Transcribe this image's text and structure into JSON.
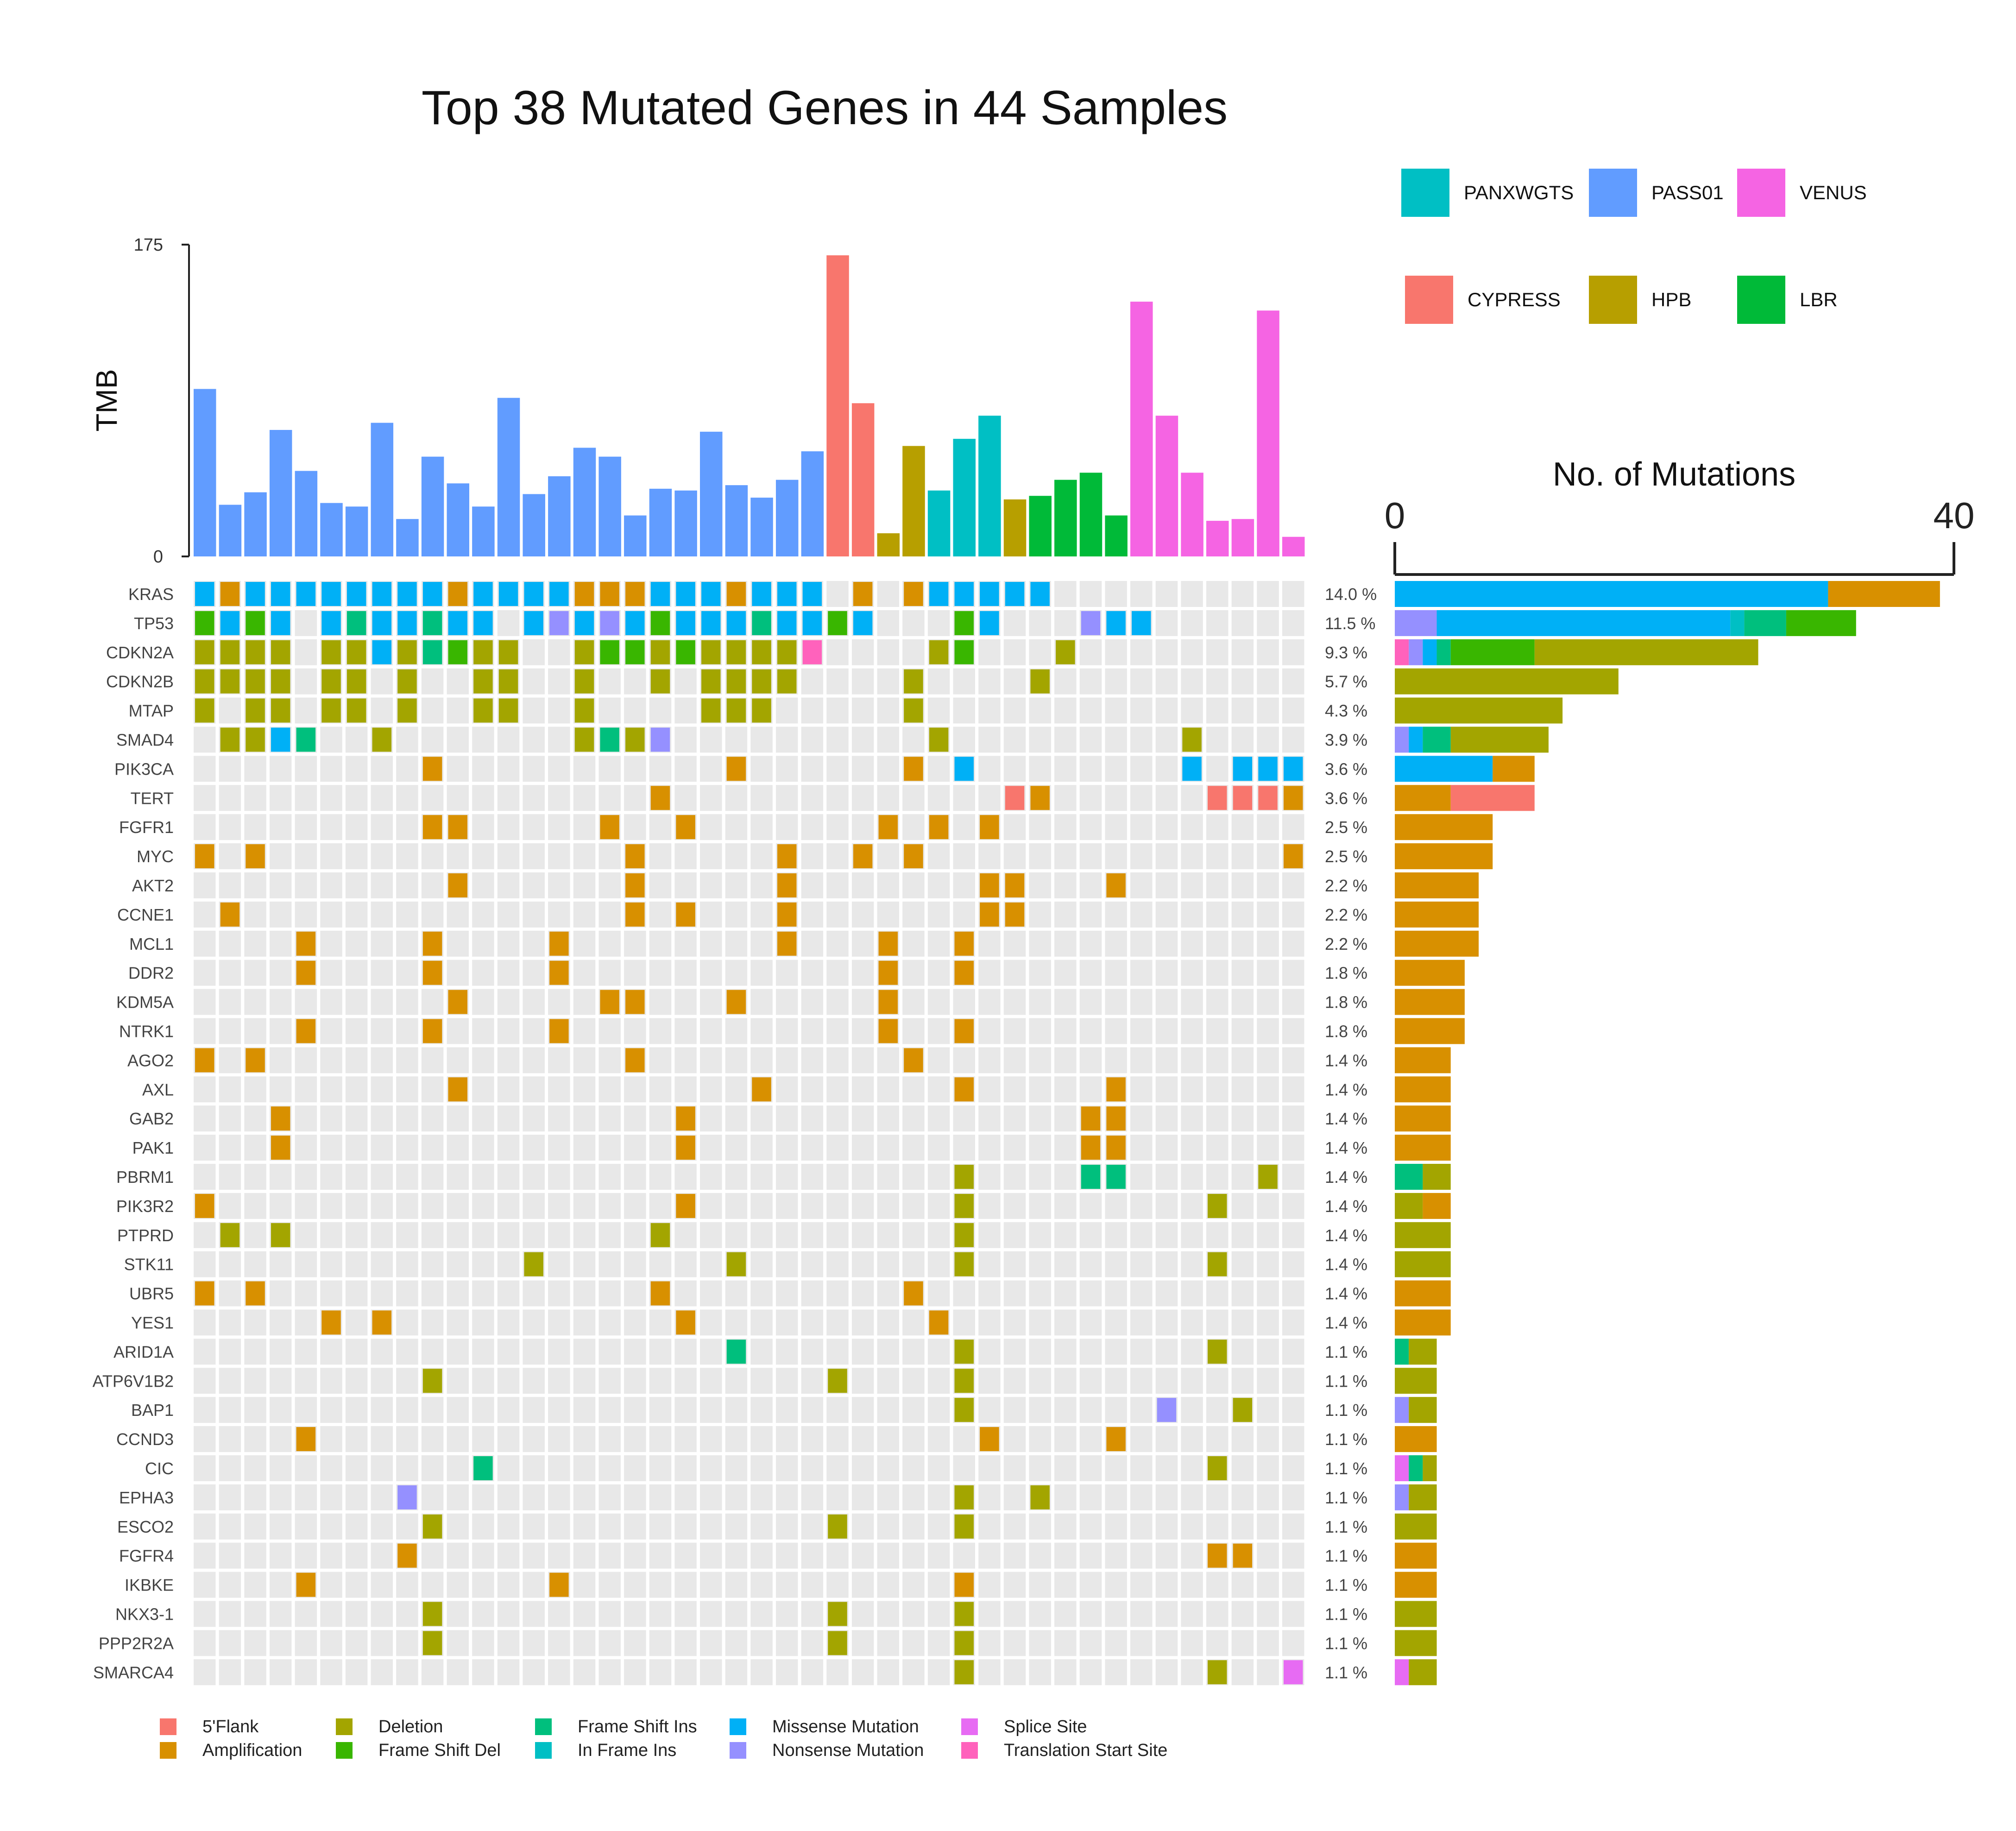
{
  "chart_data": {
    "type": "heatmap",
    "title": "Top 38 Mutated Genes in 44 Samples",
    "tmb": {
      "ylabel": "TMB",
      "ylim": [
        0,
        175
      ],
      "tick_labels": [
        "0",
        "175"
      ],
      "values": [
        94,
        29,
        36,
        71,
        48,
        30,
        28,
        75,
        21,
        56,
        41,
        28,
        89,
        35,
        45,
        61,
        56,
        23,
        38,
        37,
        70,
        40,
        33,
        43,
        59,
        169,
        86,
        13,
        62,
        37,
        66,
        79,
        32,
        34,
        43,
        47,
        23,
        143,
        79,
        47,
        20,
        21,
        138,
        11
      ],
      "cohort": [
        "PASS01",
        "PASS01",
        "PASS01",
        "PASS01",
        "PASS01",
        "PASS01",
        "PASS01",
        "PASS01",
        "PASS01",
        "PASS01",
        "PASS01",
        "PASS01",
        "PASS01",
        "PASS01",
        "PASS01",
        "PASS01",
        "PASS01",
        "PASS01",
        "PASS01",
        "PASS01",
        "PASS01",
        "PASS01",
        "PASS01",
        "PASS01",
        "PASS01",
        "CYPRESS",
        "CYPRESS",
        "HPB",
        "HPB",
        "PANXWGTS",
        "PANXWGTS",
        "PANXWGTS",
        "HPB",
        "LBR",
        "LBR",
        "LBR",
        "LBR",
        "VENUS",
        "VENUS",
        "VENUS",
        "VENUS",
        "VENUS",
        "VENUS",
        "VENUS"
      ]
    },
    "cohorts": [
      {
        "name": "PANXWGTS",
        "color": "#00BFC4"
      },
      {
        "name": "PASS01",
        "color": "#619CFF"
      },
      {
        "name": "VENUS",
        "color": "#F564E3"
      },
      {
        "name": "CYPRESS",
        "color": "#F8766D"
      },
      {
        "name": "HPB",
        "color": "#B79F00"
      },
      {
        "name": "LBR",
        "color": "#00BA38"
      }
    ],
    "mutation_types": [
      {
        "code": "F",
        "name": "5'Flank",
        "color": "#F8766D"
      },
      {
        "code": "A",
        "name": "Amplification",
        "color": "#D89000"
      },
      {
        "code": "D",
        "name": "Deletion",
        "color": "#A3A500"
      },
      {
        "code": "L",
        "name": "Frame Shift Del",
        "color": "#39B600"
      },
      {
        "code": "I",
        "name": "Frame Shift Ins",
        "color": "#00BF7D"
      },
      {
        "code": "N",
        "name": "In Frame Ins",
        "color": "#00BFC4"
      },
      {
        "code": "M",
        "name": "Missense Mutation",
        "color": "#00B0F6"
      },
      {
        "code": "X",
        "name": "Nonsense Mutation",
        "color": "#9590FF"
      },
      {
        "code": "S",
        "name": "Splice Site",
        "color": "#E76BF3"
      },
      {
        "code": "T",
        "name": "Translation Start Site",
        "color": "#FF62BC"
      }
    ],
    "genes": [
      {
        "gene": "KRAS",
        "pct": "14.0 %",
        "row": "MAMMMMMMMMAMMMMAAAMMMAMMM-A-AMMMMM----------",
        "bar": [
          [
            "M",
            31
          ],
          [
            "A",
            8
          ]
        ]
      },
      {
        "gene": "TP53",
        "pct": "11.5 %",
        "row": "LMLM-MIMMIMM-MXMXMLMMMIMMLM---LM---XMM-------",
        "bar": [
          [
            "X",
            3
          ],
          [
            "M",
            21
          ],
          [
            "N",
            1
          ],
          [
            "I",
            3
          ],
          [
            "L",
            5
          ]
        ]
      },
      {
        "gene": "CDKN2A",
        "pct": "9.3 %",
        "row": "DDDD-DDMDILDD--DLLDLDDDDT----DL---D---------",
        "bar": [
          [
            "T",
            1
          ],
          [
            "X",
            1
          ],
          [
            "M",
            1
          ],
          [
            "I",
            1
          ],
          [
            "L",
            6
          ],
          [
            "D",
            16
          ]
        ]
      },
      {
        "gene": "CDKN2B",
        "pct": "5.7 %",
        "row": "DDDD-DD-D--DD--D--D-DDDD----D----D---------",
        "bar": [
          [
            "D",
            16
          ]
        ]
      },
      {
        "gene": "MTAP",
        "pct": "4.3 %",
        "row": "D-DD-DD-D--DD--D----DDD-----D--------------",
        "bar": [
          [
            "D",
            12
          ]
        ]
      },
      {
        "gene": "SMAD4",
        "pct": "3.9 %",
        "row": "-DDMI--D-------DIDX----------D---------D----",
        "bar": [
          [
            "X",
            1
          ],
          [
            "M",
            1
          ],
          [
            "I",
            2
          ],
          [
            "D",
            7
          ]
        ]
      },
      {
        "gene": "PIK3CA",
        "pct": "3.6 %",
        "row": "---------A-----------A------A-M--------M-MMMM",
        "bar": [
          [
            "M",
            7
          ],
          [
            "A",
            3
          ]
        ]
      },
      {
        "gene": "TERT",
        "pct": "3.6 %",
        "row": "------------------A-------------FA------FFFAA",
        "bar": [
          [
            "A",
            4
          ],
          [
            "F",
            6
          ]
        ]
      },
      {
        "gene": "FGFR1",
        "pct": "2.5 %",
        "row": "---------AA-----A--A-------A-A-A-------------",
        "bar": [
          [
            "A",
            7
          ]
        ]
      },
      {
        "gene": "MYC",
        "pct": "2.5 %",
        "row": "A-A--------------A-----A--A-A--------------A-",
        "bar": [
          [
            "A",
            7
          ]
        ]
      },
      {
        "gene": "AKT2",
        "pct": "2.2 %",
        "row": "----------A------A-----A-------AA---A--------",
        "bar": [
          [
            "A",
            6
          ]
        ]
      },
      {
        "gene": "CCNE1",
        "pct": "2.2 %",
        "row": "-A---------------A-A---A-------AA-----------",
        "bar": [
          [
            "A",
            6
          ]
        ]
      },
      {
        "gene": "MCL1",
        "pct": "2.2 %",
        "row": "----A----A----A--------A---A--A-------------",
        "bar": [
          [
            "A",
            6
          ]
        ]
      },
      {
        "gene": "DDR2",
        "pct": "1.8 %",
        "row": "----A----A----A------------A--A-------------",
        "bar": [
          [
            "A",
            5
          ]
        ]
      },
      {
        "gene": "KDM5A",
        "pct": "1.8 %",
        "row": "----------A-----AA---A-----A----------------",
        "bar": [
          [
            "A",
            5
          ]
        ]
      },
      {
        "gene": "NTRK1",
        "pct": "1.8 %",
        "row": "----A----A----A------------A--A-------------",
        "bar": [
          [
            "A",
            5
          ]
        ]
      },
      {
        "gene": "AGO2",
        "pct": "1.4 %",
        "row": "A-A--------------A----------A---------------",
        "bar": [
          [
            "A",
            4
          ]
        ]
      },
      {
        "gene": "AXL",
        "pct": "1.4 %",
        "row": "----------A-----------A-------A-----A-------",
        "bar": [
          [
            "A",
            4
          ]
        ]
      },
      {
        "gene": "GAB2",
        "pct": "1.4 %",
        "row": "---A---------------A---------------AA-------",
        "bar": [
          [
            "A",
            4
          ]
        ]
      },
      {
        "gene": "PAK1",
        "pct": "1.4 %",
        "row": "---A---------------A---------------AA-------",
        "bar": [
          [
            "A",
            4
          ]
        ]
      },
      {
        "gene": "PBRM1",
        "pct": "1.4 %",
        "row": "------------------------------D----II-----D-",
        "bar": [
          [
            "I",
            2
          ],
          [
            "D",
            2
          ]
        ]
      },
      {
        "gene": "PIK3R2",
        "pct": "1.4 %",
        "row": "A------------------A----------D---------D---",
        "bar": [
          [
            "D",
            2
          ],
          [
            "A",
            2
          ]
        ]
      },
      {
        "gene": "PTPRD",
        "pct": "1.4 %",
        "row": "-D-D--------------D-----------D-------------",
        "bar": [
          [
            "D",
            4
          ]
        ]
      },
      {
        "gene": "STK11",
        "pct": "1.4 %",
        "row": "-------------D-------D--------D---------D---",
        "bar": [
          [
            "D",
            4
          ]
        ]
      },
      {
        "gene": "UBR5",
        "pct": "1.4 %",
        "row": "A-A---------------A---------A---------------",
        "bar": [
          [
            "A",
            4
          ]
        ]
      },
      {
        "gene": "YES1",
        "pct": "1.4 %",
        "row": "-----A-A-----------A---------A--------------",
        "bar": [
          [
            "A",
            4
          ]
        ]
      },
      {
        "gene": "ARID1A",
        "pct": "1.1 %",
        "row": "---------------------I--------D---------D---",
        "bar": [
          [
            "I",
            1
          ],
          [
            "D",
            2
          ]
        ]
      },
      {
        "gene": "ATP6V1B2",
        "pct": "1.1 %",
        "row": "---------D---------------D----D-------------",
        "bar": [
          [
            "D",
            3
          ]
        ]
      },
      {
        "gene": "BAP1",
        "pct": "1.1 %",
        "row": "------------------------------D-------X--D--",
        "bar": [
          [
            "X",
            1
          ],
          [
            "D",
            2
          ]
        ]
      },
      {
        "gene": "CCND3",
        "pct": "1.1 %",
        "row": "----A--------------------------A----A-------",
        "bar": [
          [
            "A",
            3
          ]
        ]
      },
      {
        "gene": "CIC",
        "pct": "1.1 %",
        "row": "-----------I----------------------------D---",
        "bar": [
          [
            "S",
            1
          ],
          [
            "I",
            1
          ],
          [
            "D",
            1
          ]
        ]
      },
      {
        "gene": "EPHA3",
        "pct": "1.1 %",
        "row": "--------X---------------------D--D----------",
        "bar": [
          [
            "X",
            1
          ],
          [
            "D",
            2
          ]
        ]
      },
      {
        "gene": "ESCO2",
        "pct": "1.1 %",
        "row": "---------D---------------D----D-------------",
        "bar": [
          [
            "D",
            3
          ]
        ]
      },
      {
        "gene": "FGFR4",
        "pct": "1.1 %",
        "row": "--------A-------------------------------AA--",
        "bar": [
          [
            "A",
            3
          ]
        ]
      },
      {
        "gene": "IKBKE",
        "pct": "1.1 %",
        "row": "----A---------A---------------A-------------",
        "bar": [
          [
            "A",
            3
          ]
        ]
      },
      {
        "gene": "NKX3-1",
        "pct": "1.1 %",
        "row": "---------D---------------D----D-------------",
        "bar": [
          [
            "D",
            3
          ]
        ]
      },
      {
        "gene": "PPP2R2A",
        "pct": "1.1 %",
        "row": "---------D---------------D----D-------------",
        "bar": [
          [
            "D",
            3
          ]
        ]
      },
      {
        "gene": "SMARCA4",
        "pct": "1.1 %",
        "row": "------------------------------D---------D--S",
        "bar": [
          [
            "S",
            1
          ],
          [
            "D",
            2
          ]
        ]
      }
    ],
    "mutations_axis": {
      "xlabel": "No. of Mutations",
      "xlim": [
        0,
        40
      ],
      "tick_labels": [
        "0",
        "40"
      ]
    },
    "grid": true,
    "legend_position": "bottom"
  }
}
